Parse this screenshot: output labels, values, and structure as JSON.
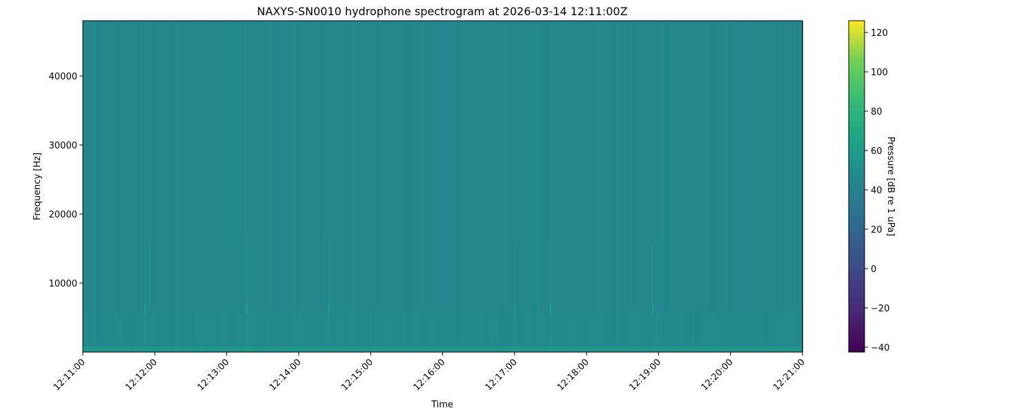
{
  "chart_data": {
    "type": "heatmap",
    "title": "NAXYS-SN0010 hydrophone spectrogram at 2026-03-14 12:11:00Z",
    "xlabel": "Time",
    "ylabel": "Frequency [Hz]",
    "colorbar_label": "Pressure [dB re 1 uPa]",
    "colormap": "viridis",
    "xlim": [
      "12:11:00",
      "12:21:00"
    ],
    "ylim": [
      0,
      48000
    ],
    "clim": [
      -42.5,
      126
    ],
    "x_ticks": [
      "12:11:00",
      "12:12:00",
      "12:13:00",
      "12:14:00",
      "12:15:00",
      "12:16:00",
      "12:17:00",
      "12:18:00",
      "12:19:00",
      "12:20:00",
      "12:21:00"
    ],
    "y_ticks": [
      10000,
      20000,
      30000,
      40000
    ],
    "colorbar_ticks": [
      -40,
      -20,
      0,
      20,
      40,
      60,
      80,
      100,
      120
    ],
    "background_level_db": 45,
    "low_frequency_band": {
      "max_hz": 800,
      "level_db": 56
    },
    "transients": [
      {
        "time": "12:11:52",
        "max_hz": 16000,
        "level_db": 55
      },
      {
        "time": "12:13:17",
        "max_hz": 16000,
        "level_db": 56
      },
      {
        "time": "12:14:25",
        "max_hz": 16000,
        "level_db": 54
      },
      {
        "time": "12:17:00",
        "max_hz": 16000,
        "level_db": 55
      },
      {
        "time": "12:17:30",
        "max_hz": 16000,
        "level_db": 56
      },
      {
        "time": "12:18:55",
        "max_hz": 16000,
        "level_db": 55
      }
    ],
    "grid": false
  }
}
